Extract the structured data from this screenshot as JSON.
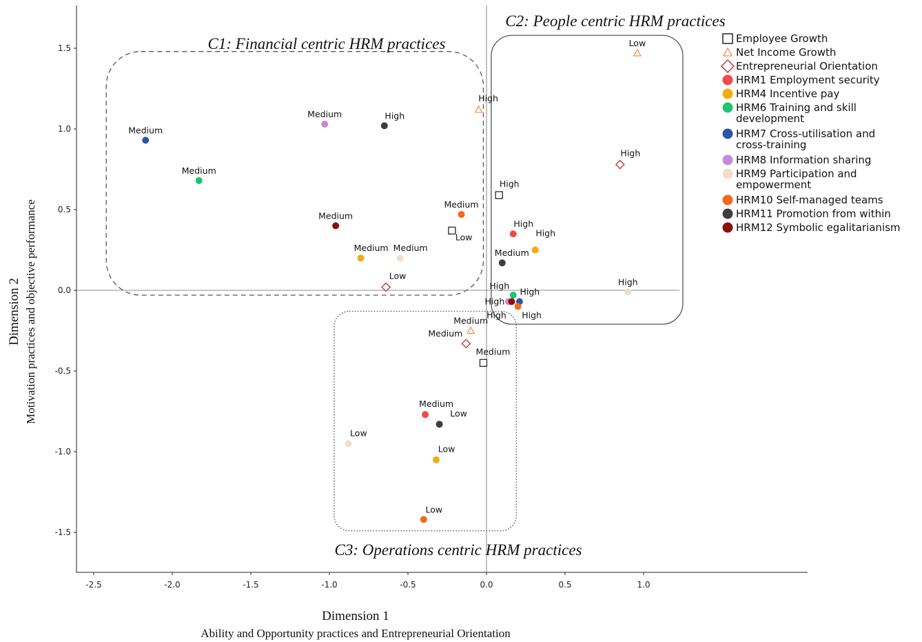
{
  "chart_data": {
    "type": "scatter",
    "title": "",
    "xlabel": "Dimension 1",
    "xlabel_sub": "Ability and Opportunity practices and Entrepreneurial Orientation",
    "ylabel": "Dimension 2",
    "ylabel_sub": "Motivation practices and objective performance",
    "xlim": [
      -2.5,
      1.05
    ],
    "ylim": [
      -1.75,
      1.75
    ],
    "x_ticks": [
      "-2.5",
      "-2.0",
      "-1.5",
      "-1.0",
      "-0.5",
      "0.0",
      "0.5",
      "1.0"
    ],
    "y_ticks": [
      "1.5",
      "1.0",
      "0.5",
      "0.0",
      "-0.5",
      "-1.0",
      "-1.5"
    ],
    "clusters": [
      {
        "label": "C1: Financial centric HRM practices",
        "style": "dashed"
      },
      {
        "label": "C2: People centric HRM practices",
        "style": "solid"
      },
      {
        "label": "C3: Operations centric HRM practices",
        "style": "dotted"
      }
    ],
    "legend_position": "right",
    "series": [
      {
        "name": "Employee Growth",
        "marker": "square",
        "color": "#333333",
        "points": [
          {
            "x": 0.08,
            "y": 0.59,
            "label": "High"
          },
          {
            "x": -0.22,
            "y": 0.37,
            "label": "Low"
          },
          {
            "x": -0.02,
            "y": -0.45,
            "label": "Medium"
          }
        ]
      },
      {
        "name": "Net Income Growth",
        "marker": "triangle",
        "color": "#f08a4b",
        "points": [
          {
            "x": 0.96,
            "y": 1.47,
            "label": "Low"
          },
          {
            "x": -0.05,
            "y": 1.12,
            "label": "High"
          },
          {
            "x": -0.1,
            "y": -0.25,
            "label": "Medium"
          }
        ]
      },
      {
        "name": "Entrepreneurial Orientation",
        "marker": "diamond",
        "color": "#c8373a",
        "points": [
          {
            "x": 0.85,
            "y": 0.78,
            "label": "High"
          },
          {
            "x": -0.64,
            "y": 0.02,
            "label": "Low"
          },
          {
            "x": -0.13,
            "y": -0.33,
            "label": "Medium"
          }
        ]
      },
      {
        "name": "HRM1 Employment security",
        "marker": "circle",
        "color": "#ee4a4a",
        "points": [
          {
            "x": 0.17,
            "y": 0.35,
            "label": "High"
          },
          {
            "x": -0.39,
            "y": -0.77,
            "label": "Medium"
          }
        ]
      },
      {
        "name": "HRM4 Incentive pay",
        "marker": "circle",
        "color": "#f0ac12",
        "points": [
          {
            "x": -0.8,
            "y": 0.2,
            "label": "Medium"
          },
          {
            "x": 0.31,
            "y": 0.25,
            "label": "High"
          },
          {
            "x": -0.32,
            "y": -1.05,
            "label": "Low"
          }
        ]
      },
      {
        "name": "HRM6 Training and skill development",
        "marker": "circle",
        "color": "#21c36f",
        "points": [
          {
            "x": -1.83,
            "y": 0.68,
            "label": "Medium"
          },
          {
            "x": 0.17,
            "y": -0.03,
            "label": "High"
          }
        ]
      },
      {
        "name": "HRM7 Cross-utilisation and cross-training",
        "marker": "circle",
        "color": "#2c55a8",
        "points": [
          {
            "x": -2.17,
            "y": 0.93,
            "label": "Medium"
          },
          {
            "x": 0.21,
            "y": -0.07,
            "label": "High"
          }
        ]
      },
      {
        "name": "HRM8 Information sharing",
        "marker": "circle",
        "color": "#c88ad6",
        "points": [
          {
            "x": -1.03,
            "y": 1.03,
            "label": "Medium"
          },
          {
            "x": 0.14,
            "y": -0.07,
            "label": "High"
          }
        ]
      },
      {
        "name": "HRM9 Participation and empowerment",
        "marker": "circle",
        "color": "#f0dfc8",
        "points": [
          {
            "x": -0.55,
            "y": 0.2,
            "label": "Medium"
          },
          {
            "x": 0.9,
            "y": -0.01,
            "label": "High"
          },
          {
            "x": -0.88,
            "y": -0.95,
            "label": "Low"
          }
        ]
      },
      {
        "name": "HRM10 Self-managed teams",
        "marker": "circle",
        "color": "#f26a1b",
        "points": [
          {
            "x": -0.16,
            "y": 0.47,
            "label": "Medium"
          },
          {
            "x": 0.2,
            "y": -0.1,
            "label": "High"
          },
          {
            "x": -0.4,
            "y": -1.42,
            "label": "Low"
          }
        ]
      },
      {
        "name": "HRM11 Promotion from within",
        "marker": "circle",
        "color": "#3d3d3d",
        "points": [
          {
            "x": -0.65,
            "y": 1.02,
            "label": "High"
          },
          {
            "x": 0.1,
            "y": 0.17,
            "label": "Medium"
          },
          {
            "x": -0.3,
            "y": -0.83,
            "label": "Low"
          }
        ]
      },
      {
        "name": "HRM12 Symbolic egalitarianism",
        "marker": "circle",
        "color": "#8b0f0f",
        "points": [
          {
            "x": -0.96,
            "y": 0.4,
            "label": "Medium"
          },
          {
            "x": 0.16,
            "y": -0.07,
            "label": "High"
          }
        ]
      }
    ]
  }
}
